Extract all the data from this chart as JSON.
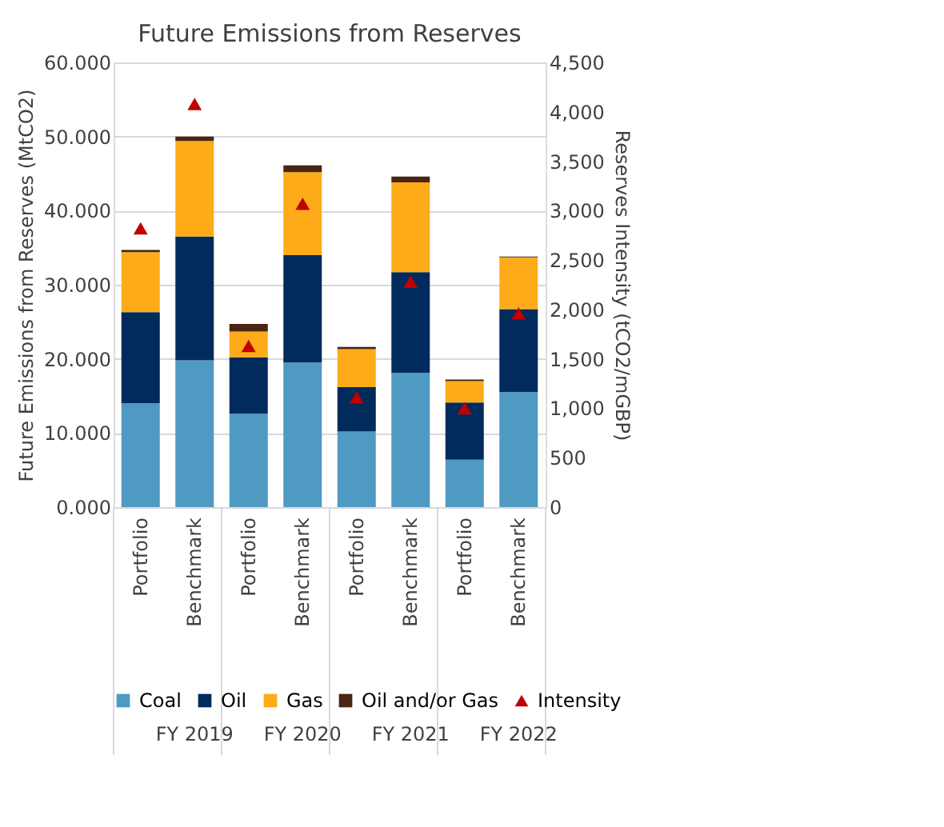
{
  "chart_data": {
    "type": "bar",
    "title": "Future Emissions from Reserves",
    "ylabel": "Future Emissions from Reserves (MtCO2)",
    "y2label": "Reserves Intensity (tCO2/mGBP)",
    "categories": [
      "Portfolio",
      "Benchmark",
      "Portfolio",
      "Benchmark",
      "Portfolio",
      "Benchmark",
      "Portfolio",
      "Benchmark"
    ],
    "annotations": [
      "FY 2019",
      "FY 2020",
      "FY 2021",
      "FY 2022"
    ],
    "stacked": true,
    "series": [
      {
        "name": "Coal",
        "color": "#4f9ac2",
        "values": [
          14.0,
          19.8,
          12.6,
          19.5,
          10.2,
          18.1,
          6.4,
          15.5
        ]
      },
      {
        "name": "Oil",
        "color": "#002b5c",
        "values": [
          12.3,
          16.7,
          7.6,
          14.5,
          6.0,
          13.6,
          7.7,
          11.2
        ]
      },
      {
        "name": "Gas",
        "color": "#fdab18",
        "values": [
          8.1,
          12.9,
          3.5,
          11.2,
          5.1,
          12.1,
          2.9,
          7.0
        ]
      },
      {
        "name": "Oil and/or Gas",
        "color": "#4a2511",
        "values": [
          0.3,
          0.6,
          1.0,
          0.9,
          0.3,
          0.8,
          0.2,
          0.1
        ]
      },
      {
        "name": "Intensity",
        "color": "#c00000",
        "type": "scatter",
        "axis": "y2",
        "marker": "triangle",
        "values": [
          2820,
          4080,
          1630,
          3070,
          1110,
          2280,
          1000,
          1960
        ]
      }
    ],
    "ylim": [
      0,
      60
    ],
    "yticks": [
      {
        "value": 0,
        "label": "0.000"
      },
      {
        "value": 10,
        "label": "10.000"
      },
      {
        "value": 20,
        "label": "20.000"
      },
      {
        "value": 30,
        "label": "30.000"
      },
      {
        "value": 40,
        "label": "40.000"
      },
      {
        "value": 50,
        "label": "50.000"
      },
      {
        "value": 60,
        "label": "60.000"
      }
    ],
    "y2lim": [
      0,
      4500
    ],
    "y2ticks": [
      0,
      500,
      {
        "value": 1000,
        "label": "1,000"
      },
      {
        "value": 1500,
        "label": "1,500"
      },
      {
        "value": 2000,
        "label": "2,000"
      },
      {
        "value": 2500,
        "label": "2,500"
      },
      {
        "value": 3000,
        "label": "3,000"
      },
      {
        "value": 3500,
        "label": "3,500"
      },
      {
        "value": 4000,
        "label": "4,000"
      },
      {
        "value": 4500,
        "label": "4,500"
      }
    ],
    "grid": "y",
    "legend": "bottom"
  }
}
